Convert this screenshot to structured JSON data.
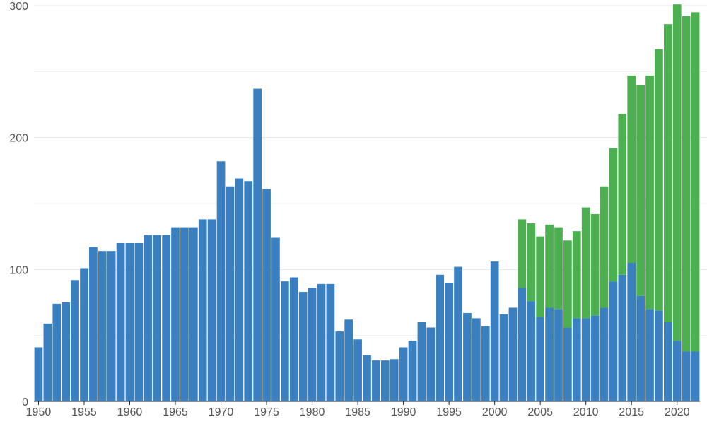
{
  "chart_data": {
    "type": "bar",
    "stacked": true,
    "title": "",
    "xlabel": "",
    "ylabel": "",
    "ylim": [
      0,
      300
    ],
    "y_ticks": [
      0,
      100,
      200,
      300
    ],
    "y_minor_ticks": [
      50,
      150,
      250
    ],
    "x_ticks": [
      1950,
      1955,
      1960,
      1965,
      1970,
      1975,
      1980,
      1985,
      1990,
      1995,
      2000,
      2005,
      2010,
      2015,
      2020
    ],
    "grid": true,
    "legend": "none",
    "x": [
      1950,
      1951,
      1952,
      1953,
      1954,
      1955,
      1956,
      1957,
      1958,
      1959,
      1960,
      1961,
      1962,
      1963,
      1964,
      1965,
      1966,
      1967,
      1968,
      1969,
      1970,
      1971,
      1972,
      1973,
      1974,
      1975,
      1976,
      1977,
      1978,
      1979,
      1980,
      1981,
      1982,
      1983,
      1984,
      1985,
      1986,
      1987,
      1988,
      1989,
      1990,
      1991,
      1992,
      1993,
      1994,
      1995,
      1996,
      1997,
      1998,
      1999,
      2000,
      2001,
      2002,
      2003,
      2004,
      2005,
      2006,
      2007,
      2008,
      2009,
      2010,
      2011,
      2012,
      2013,
      2014,
      2015,
      2016,
      2017,
      2018,
      2019,
      2020,
      2021,
      2022
    ],
    "series": [
      {
        "color": "#3a7fbf",
        "values": [
          41,
          59,
          74,
          75,
          92,
          101,
          117,
          114,
          114,
          120,
          120,
          120,
          126,
          126,
          126,
          132,
          132,
          132,
          138,
          138,
          182,
          163,
          169,
          167,
          237,
          161,
          124,
          91,
          94,
          83,
          86,
          89,
          89,
          53,
          62,
          47,
          35,
          31,
          31,
          32,
          41,
          46,
          60,
          56,
          96,
          90,
          102,
          67,
          63,
          57,
          106,
          66,
          71,
          86,
          76,
          64,
          71,
          70,
          56,
          63,
          63,
          65,
          71,
          91,
          96,
          105,
          80,
          70,
          69,
          60,
          46,
          38,
          38
        ]
      },
      {
        "color": "#4caf50",
        "values": [
          0,
          0,
          0,
          0,
          0,
          0,
          0,
          0,
          0,
          0,
          0,
          0,
          0,
          0,
          0,
          0,
          0,
          0,
          0,
          0,
          0,
          0,
          0,
          0,
          0,
          0,
          0,
          0,
          0,
          0,
          0,
          0,
          0,
          0,
          0,
          0,
          0,
          0,
          0,
          0,
          0,
          0,
          0,
          0,
          0,
          0,
          0,
          0,
          0,
          0,
          0,
          0,
          0,
          52,
          59,
          61,
          63,
          62,
          66,
          66,
          84,
          77,
          92,
          101,
          122,
          142,
          160,
          177,
          198,
          226,
          255,
          254,
          257
        ]
      }
    ]
  }
}
